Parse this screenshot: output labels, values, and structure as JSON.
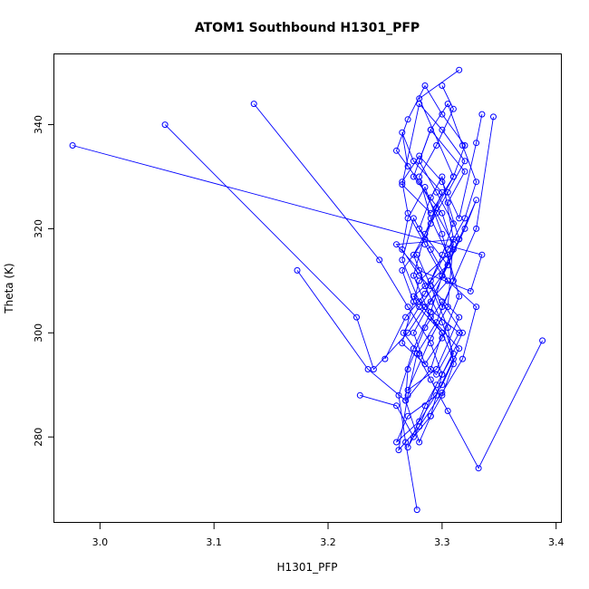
{
  "chart_data": {
    "type": "scatter",
    "style": "points-connected",
    "title": "ATOM1 Southbound H1301_PFP",
    "xlabel": "H1301_PFP",
    "ylabel": "Theta (K)",
    "xlim": [
      2.96,
      3.405
    ],
    "ylim": [
      263.5,
      353.5
    ],
    "xticks": [
      "3.0",
      "3.1",
      "3.2",
      "3.3",
      "3.4"
    ],
    "xtick_values": [
      3.0,
      3.1,
      3.2,
      3.3,
      3.4
    ],
    "yticks": [
      "280",
      "300",
      "320",
      "340"
    ],
    "ytick_values": [
      280,
      300,
      320,
      340
    ],
    "grid": false,
    "color": "#0000ff",
    "series": [
      {
        "x": [
          2.976,
          3.335,
          3.325,
          3.28,
          3.26,
          3.315,
          3.305,
          3.32,
          3.29,
          3.275,
          3.3,
          3.31,
          3.28,
          3.265,
          3.295,
          3.315,
          3.275,
          3.305,
          3.28,
          3.29,
          3.3,
          3.31,
          3.305,
          3.29,
          3.27,
          3.295,
          3.315,
          3.28,
          3.265,
          3.27,
          3.285,
          3.3,
          3.31,
          3.295,
          3.278
        ],
        "y": [
          336.0,
          315.0,
          308.0,
          312.0,
          317.0,
          318.0,
          325.0,
          331.0,
          339.0,
          330.0,
          323.0,
          316.0,
          310.0,
          298.0,
          292.0,
          300.0,
          307.0,
          313.0,
          320.0,
          326.0,
          330.0,
          318.0,
          305.0,
          299.0,
          289.0,
          293.0,
          303.0,
          311.0,
          316.0,
          322.0,
          328.0,
          319.0,
          310.0,
          302.0,
          296.0
        ]
      },
      {
        "x": [
          3.057,
          3.225,
          3.24,
          3.27,
          3.285,
          3.305,
          3.29,
          3.275,
          3.265,
          3.28,
          3.3,
          3.31,
          3.295,
          3.27,
          3.26,
          3.28,
          3.3,
          3.315,
          3.29,
          3.275,
          3.285,
          3.3,
          3.275,
          3.265,
          3.27
        ],
        "y": [
          340.0,
          303.0,
          293.0,
          300.0,
          305.0,
          310.0,
          316.0,
          322.0,
          314.0,
          306.0,
          300.0,
          295.0,
          288.0,
          284.0,
          279.0,
          283.0,
          290.0,
          297.0,
          303.0,
          311.0,
          319.0,
          327.0,
          333.0,
          338.5,
          332.0
        ]
      },
      {
        "x": [
          3.135,
          3.245,
          3.27,
          3.29,
          3.3,
          3.285,
          3.27,
          3.28,
          3.295,
          3.31,
          3.3,
          3.285,
          3.275,
          3.29,
          3.305,
          3.32,
          3.3,
          3.28,
          3.265,
          3.29,
          3.31,
          3.28,
          3.315
        ],
        "y": [
          344.0,
          314.0,
          305.0,
          298.0,
          292.0,
          286.0,
          278.0,
          282.0,
          290.0,
          296.0,
          302.0,
          309.0,
          315.0,
          321.0,
          327.0,
          333.0,
          339.0,
          344.0,
          328.5,
          323.0,
          330.0,
          345.0,
          350.5
        ]
      },
      {
        "x": [
          3.173,
          3.235,
          3.268,
          3.29,
          3.3,
          3.275,
          3.265,
          3.285,
          3.295,
          3.31,
          3.32,
          3.3,
          3.285,
          3.27,
          3.26,
          3.28,
          3.295,
          3.31,
          3.3,
          3.28,
          3.266,
          3.28
        ],
        "y": [
          312.0,
          293.0,
          287.0,
          293.0,
          300.0,
          306.0,
          312.0,
          318.0,
          324.0,
          330.0,
          336.0,
          342.0,
          347.5,
          341.0,
          335.0,
          329.0,
          323.0,
          317.0,
          311.0,
          305.0,
          300.0,
          296.0
        ]
      },
      {
        "x": [
          3.228,
          3.26,
          3.275,
          3.29,
          3.3,
          3.318,
          3.3,
          3.285,
          3.27,
          3.268,
          3.28,
          3.29,
          3.3,
          3.31,
          3.305,
          3.29,
          3.278
        ],
        "y": [
          288.0,
          286.0,
          280.0,
          284.0,
          292.0,
          300.0,
          306.0,
          301.0,
          293.0,
          287.0,
          279.0,
          284.0,
          288.0,
          294.0,
          301.0,
          309.0,
          315.0
        ]
      },
      {
        "x": [
          3.25,
          3.268,
          3.285,
          3.3,
          3.31,
          3.295,
          3.28,
          3.29,
          3.305,
          3.318,
          3.33,
          3.32,
          3.305,
          3.29,
          3.3,
          3.33,
          3.345
        ],
        "y": [
          295.0,
          303.0,
          307.5,
          315.0,
          321.0,
          327.0,
          333.0,
          339.0,
          344.0,
          336.0,
          329.0,
          322.0,
          316.0,
          310.0,
          305.0,
          320.0,
          341.5
        ]
      },
      {
        "x": [
          3.388,
          3.332,
          3.305,
          3.29,
          3.278,
          3.27,
          3.262,
          3.28,
          3.3,
          3.318,
          3.33,
          3.3,
          3.285,
          3.27,
          3.265,
          3.28,
          3.3,
          3.315,
          3.33,
          3.335
        ],
        "y": [
          298.5,
          274.0,
          285.0,
          291.0,
          296.0,
          288.0,
          277.5,
          282.0,
          288.5,
          295.0,
          305.0,
          311.0,
          317.0,
          323.0,
          329.0,
          334.0,
          329.0,
          322.0,
          336.5,
          342.0
        ]
      },
      {
        "x": [
          3.278,
          3.268,
          3.262,
          3.275,
          3.29,
          3.3,
          3.315,
          3.33,
          3.32,
          3.305,
          3.29,
          3.275,
          3.285,
          3.3,
          3.315,
          3.305,
          3.29,
          3.28,
          3.295,
          3.31,
          3.3
        ],
        "y": [
          266.0,
          279.0,
          288.0,
          297.0,
          304.0,
          311.0,
          318.0,
          325.5,
          320.0,
          313.0,
          306.0,
          300.0,
          294.0,
          299.0,
          307.0,
          315.0,
          322.0,
          330.0,
          336.0,
          343.0,
          347.5
        ]
      }
    ]
  }
}
